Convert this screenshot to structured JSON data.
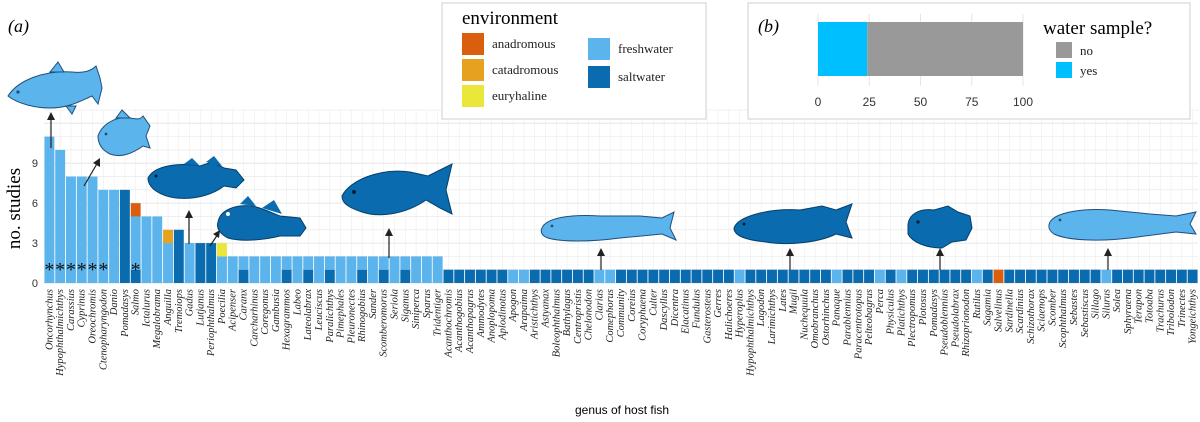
{
  "panel_a_label": "(a)",
  "panel_b_label": "(b)",
  "chart_data": [
    {
      "type": "bar",
      "panel": "a",
      "ylabel": "no. studies",
      "xlabel": "genus of host fish",
      "ylim": [
        0,
        13
      ],
      "yticks": [
        0,
        3,
        6,
        9
      ],
      "grid": true,
      "asterisk_mark": "*",
      "legend": {
        "title": "environment",
        "placement": "top-center",
        "entries": [
          {
            "name": "anadromous",
            "color": "#D95F0E"
          },
          {
            "name": "catadromous",
            "color": "#E6A11F"
          },
          {
            "name": "euryhaline",
            "color": "#EBE73A"
          },
          {
            "name": "freshwater",
            "color": "#5CB4EC"
          },
          {
            "name": "saltwater",
            "color": "#0A6BAE"
          }
        ]
      },
      "categories": [
        "Oncorhynchus",
        "Hypophthalmichthys",
        "Carassius",
        "Cyprinus",
        "Oreochromis",
        "Ctenopharyngodon",
        "Danio",
        "Pomadasys",
        "Salmo",
        "Ictalurus",
        "Megalobrama",
        "Anguilla",
        "Tremoiops",
        "Gadus",
        "Lutjanus",
        "Periophthalmus",
        "Poecilia",
        "Acipenser",
        "Caranx",
        "Carcharhinus",
        "Coregonus",
        "Gambusia",
        "Hexagrammos",
        "Labeo",
        "Lateolabrax",
        "Leuciscus",
        "Paralichthys",
        "Pimephales",
        "Pleuronectes",
        "Rhinogobius",
        "Sander",
        "Scomberomorus",
        "Seriola",
        "Siganus",
        "Siniperca",
        "Sparus",
        "Tridentiger",
        "Acanthochromis",
        "Acanthogobius",
        "Acanthopagrus",
        "Ammodytes",
        "Anoplopoma",
        "Aplodinotus",
        "Apogon",
        "Arapaima",
        "Aristichthys",
        "Astyanax",
        "Boleophthalmus",
        "Bathylagus",
        "Centropristis",
        "Chelonodon",
        "Clarias",
        "Comephorus",
        "Community",
        "Coreius",
        "Coryphaena",
        "Culter",
        "Dascyllus",
        "Dicentra",
        "Elacatinus",
        "Fundulus",
        "Gasterosteus",
        "Gerres",
        "Halichoeres",
        "Hyperoplus",
        "Hypophthalmichthys",
        "Lagodon",
        "Larimichthys",
        "Lates",
        "Mugil",
        "Nuchequula",
        "Omobranchus",
        "Ostorhinchus",
        "Panaque",
        "Parablennius",
        "Paracentrotopus",
        "Pelteobagrus",
        "Perca",
        "Physiculus",
        "Platichthys",
        "Plectropomus",
        "Plotosus",
        "Pomadasys",
        "Pseudoblennius",
        "Pseudolabrax",
        "Rhizoprionodon",
        "Rutilus",
        "Sagamia",
        "Salvelinus",
        "Sardinella",
        "Scardinius",
        "Schizothorax",
        "Sciaenops",
        "Scomber",
        "Scophthalmus",
        "Sebastes",
        "Sebastiscus",
        "Sillago",
        "Silurus",
        "Solea",
        "Sphyraena",
        "Terapon",
        "Totoaba",
        "Trachurus",
        "Tribolodon",
        "Trinectes",
        "Yongeichthys"
      ],
      "series": [
        {
          "name": "anadromous",
          "values": [
            0,
            0,
            0,
            0,
            0,
            0,
            0,
            0,
            1,
            0,
            0,
            0,
            0,
            0,
            0,
            0,
            0,
            0,
            0,
            0,
            0,
            0,
            0,
            0,
            0,
            0,
            0,
            0,
            0,
            0,
            0,
            0,
            0,
            0,
            0,
            0,
            0,
            0,
            0,
            0,
            0,
            0,
            0,
            0,
            0,
            0,
            0,
            0,
            0,
            0,
            0,
            0,
            0,
            0,
            0,
            0,
            0,
            0,
            0,
            0,
            0,
            0,
            0,
            0,
            0,
            0,
            0,
            0,
            0,
            0,
            0,
            0,
            0,
            0,
            0,
            0,
            0,
            0,
            0,
            0,
            0,
            0,
            0,
            0,
            0,
            0,
            0,
            0,
            1,
            0,
            0,
            0,
            0,
            0,
            0,
            0,
            0,
            0,
            0,
            0,
            0,
            0,
            0,
            0,
            0,
            0,
            0
          ]
        },
        {
          "name": "catadromous",
          "values": [
            0,
            0,
            0,
            0,
            0,
            0,
            0,
            0,
            0,
            0,
            0,
            1,
            0,
            0,
            0,
            0,
            0,
            0,
            0,
            0,
            0,
            0,
            0,
            0,
            0,
            0,
            0,
            0,
            0,
            0,
            0,
            0,
            0,
            0,
            0,
            0,
            0,
            0,
            0,
            0,
            0,
            0,
            0,
            0,
            0,
            0,
            0,
            0,
            0,
            0,
            0,
            0,
            0,
            0,
            0,
            0,
            0,
            0,
            0,
            0,
            0,
            0,
            0,
            0,
            0,
            0,
            0,
            0,
            0,
            0,
            0,
            0,
            0,
            0,
            0,
            0,
            0,
            0,
            0,
            0,
            0,
            0,
            0,
            0,
            0,
            0,
            0,
            0,
            0,
            0,
            0,
            0,
            0,
            0,
            0,
            0,
            0,
            0,
            0,
            0,
            0,
            0,
            0,
            0,
            0,
            0,
            0
          ]
        },
        {
          "name": "euryhaline",
          "values": [
            0,
            0,
            0,
            0,
            0,
            0,
            0,
            0,
            0,
            0,
            0,
            0,
            0,
            0,
            0,
            0,
            1,
            0,
            0,
            0,
            0,
            0,
            0,
            0,
            0,
            0,
            0,
            0,
            0,
            0,
            0,
            0,
            0,
            0,
            0,
            0,
            0,
            0,
            0,
            0,
            0,
            0,
            0,
            0,
            0,
            0,
            0,
            0,
            0,
            0,
            0,
            0,
            0,
            0,
            0,
            0,
            0,
            0,
            0,
            0,
            0,
            0,
            0,
            0,
            0,
            0,
            0,
            0,
            0,
            0,
            0,
            0,
            0,
            0,
            0,
            0,
            0,
            0,
            0,
            0,
            0,
            0,
            0,
            0,
            0,
            0,
            0,
            0,
            0,
            0,
            0,
            0,
            0,
            0,
            0,
            0,
            0,
            0,
            0,
            0,
            0,
            0,
            0,
            0,
            0,
            0,
            0
          ]
        },
        {
          "name": "freshwater",
          "values": [
            11,
            10,
            8,
            8,
            8,
            7,
            7,
            0,
            4,
            5,
            5,
            3,
            0,
            3,
            0,
            0,
            2,
            2,
            1,
            2,
            2,
            2,
            1,
            2,
            1,
            2,
            1,
            2,
            2,
            1,
            2,
            1,
            2,
            1,
            2,
            2,
            2,
            0,
            0,
            0,
            0,
            0,
            0,
            1,
            1,
            0,
            0,
            0,
            0,
            0,
            0,
            1,
            1,
            0,
            0,
            0,
            0,
            0,
            0,
            0,
            0,
            0,
            0,
            0,
            1,
            0,
            0,
            0,
            0,
            0,
            0,
            0,
            0,
            1,
            0,
            0,
            0,
            1,
            0,
            1,
            0,
            0,
            0,
            0,
            0,
            0,
            1,
            0,
            0,
            0,
            0,
            0,
            0,
            0,
            0,
            0,
            0,
            0,
            1,
            0,
            0,
            0,
            0,
            0,
            0,
            0,
            0
          ]
        },
        {
          "name": "saltwater",
          "values": [
            0,
            0,
            0,
            0,
            0,
            0,
            0,
            7,
            1,
            0,
            0,
            0,
            4,
            0,
            3,
            3,
            0,
            0,
            1,
            0,
            0,
            0,
            1,
            0,
            1,
            0,
            1,
            0,
            0,
            1,
            0,
            1,
            0,
            1,
            0,
            0,
            0,
            1,
            1,
            1,
            1,
            1,
            1,
            0,
            0,
            1,
            1,
            1,
            1,
            1,
            1,
            0,
            0,
            1,
            1,
            1,
            1,
            1,
            1,
            1,
            1,
            1,
            1,
            1,
            0,
            1,
            1,
            1,
            1,
            1,
            1,
            1,
            1,
            0,
            1,
            1,
            1,
            0,
            1,
            0,
            1,
            1,
            1,
            1,
            1,
            1,
            0,
            1,
            0,
            1,
            1,
            1,
            1,
            1,
            1,
            1,
            1,
            1,
            0,
            1,
            1,
            1,
            1,
            1,
            1,
            1,
            1
          ]
        }
      ],
      "asterisks": [
        0,
        1,
        2,
        3,
        4,
        5,
        8
      ]
    },
    {
      "type": "bar",
      "panel": "b",
      "orientation": "horizontal",
      "stacked": true,
      "xlim": [
        0,
        100
      ],
      "xticks": [
        0,
        25,
        50,
        75,
        100
      ],
      "grid": true,
      "legend": {
        "title": "water sample?",
        "placement": "right",
        "entries": [
          {
            "name": "no",
            "color": "#999999"
          },
          {
            "name": "yes",
            "color": "#00BFFF"
          }
        ]
      },
      "series": [
        {
          "name": "yes",
          "values": [
            24
          ]
        },
        {
          "name": "no",
          "values": [
            76
          ]
        }
      ]
    }
  ]
}
